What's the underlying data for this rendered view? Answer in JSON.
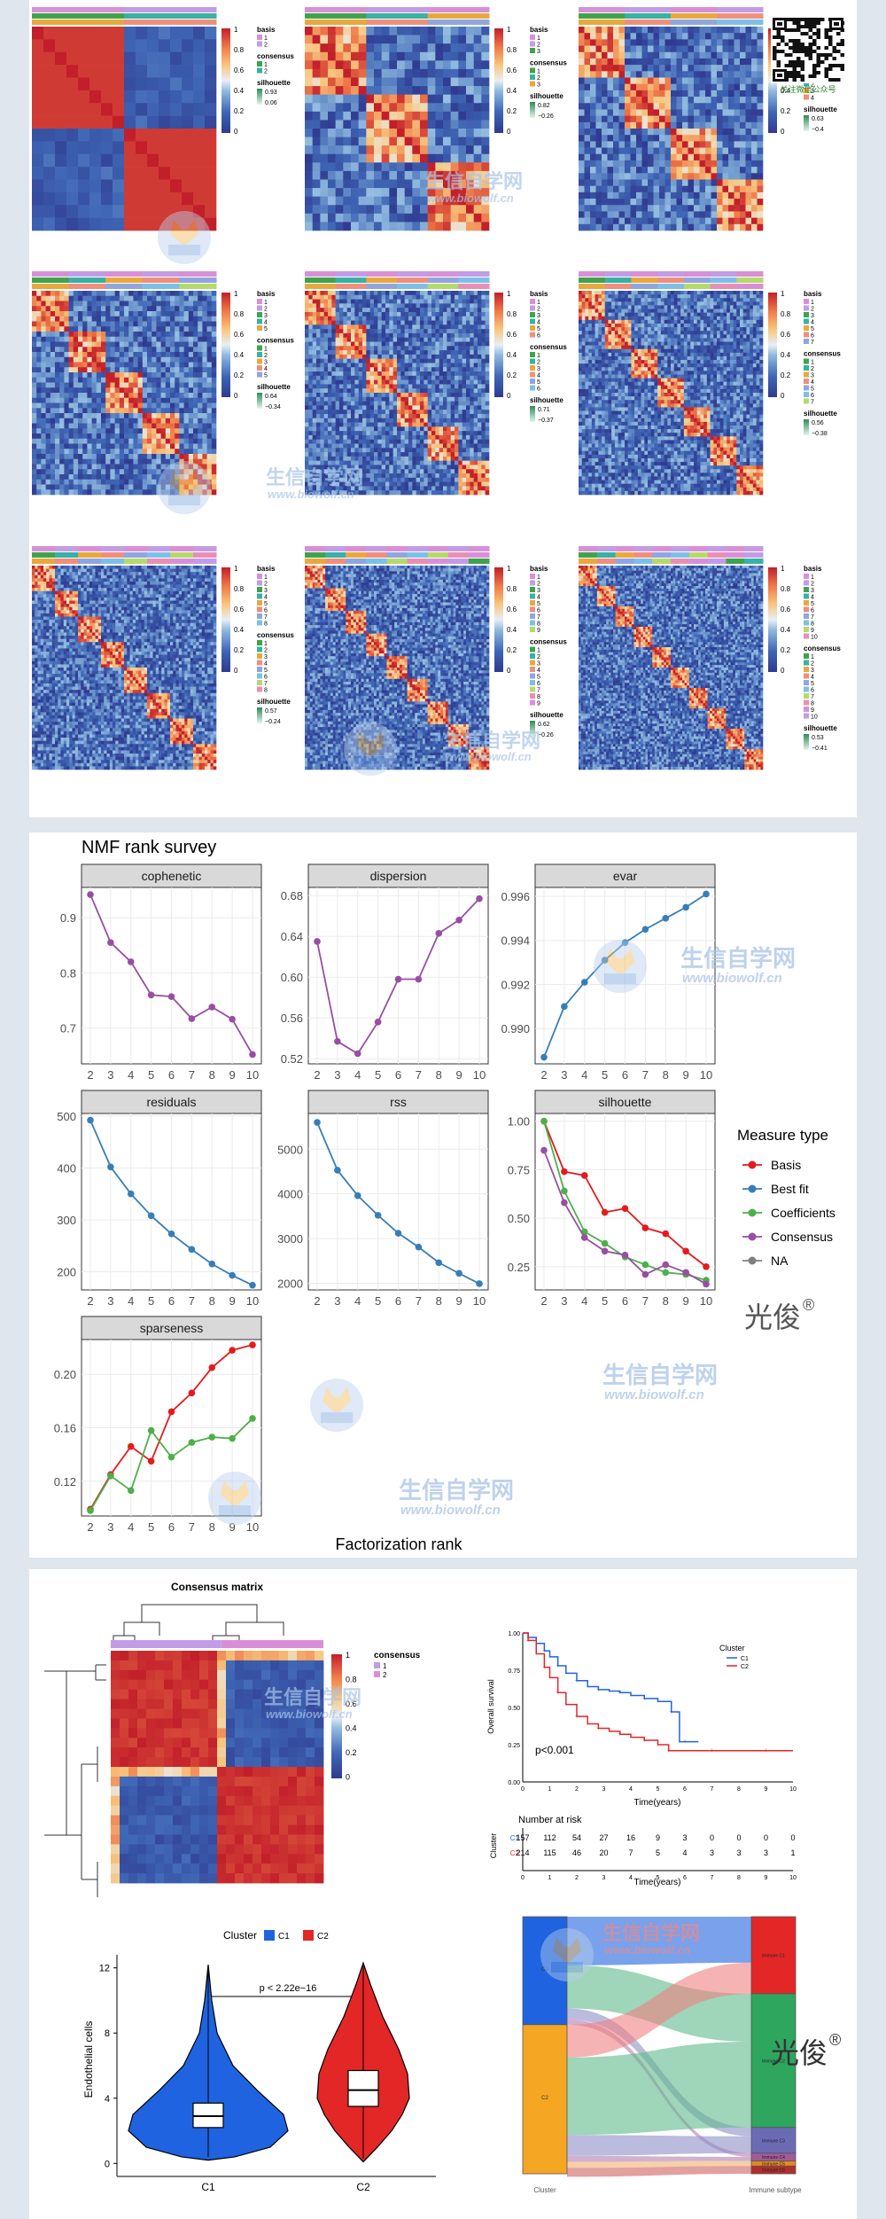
{
  "colors": {
    "page_bg": "#dfe6ee",
    "heat_scale": [
      "#2f3a8f",
      "#3f66b5",
      "#8fb9de",
      "#e8eef5",
      "#f7c67e",
      "#ef7a4a",
      "#c21f2a"
    ],
    "basis_pink": "#d98fd8",
    "basis_purple": "#c39be6",
    "cons_green": "#3fa34d",
    "cons_teal": "#38b2a4",
    "cons_orange": "#e9a83d",
    "cons_salmon": "#f08f7b",
    "measure": {
      "Basis": "#e41a1c",
      "Best fit": "#377eb8",
      "Coefficients": "#4daf4a",
      "Consensus": "#984ea3",
      "NA": "#7f7f7f"
    },
    "cluster_C1": "#1f63e0",
    "cluster_C2": "#e32626"
  },
  "icons": [
    "qr-code-icon",
    "fox-watermark-icon"
  ],
  "watermark": {
    "brand_cn": "生信自学网",
    "url": "www.biowolf.cn",
    "signature": "光俊",
    "reg": "®",
    "qr_caption": "关注微信公众号"
  },
  "consensus_maps": {
    "scale_ticks": [
      "1",
      "0.8",
      "0.6",
      "0.4",
      "0.2",
      "0"
    ],
    "basis_label": "basis",
    "consensus_label": "consensus",
    "silhouette_label": "silhouette",
    "maps": [
      {
        "k": 2,
        "silhouette_hi": "0.93",
        "silhouette_lo": "0.06"
      },
      {
        "k": 3,
        "silhouette_hi": "0.82",
        "silhouette_lo": "−0.26"
      },
      {
        "k": 4,
        "silhouette_hi": "0.63",
        "silhouette_lo": "−0.4"
      },
      {
        "k": 5,
        "silhouette_hi": "0.64",
        "silhouette_lo": "−0.34"
      },
      {
        "k": 6,
        "silhouette_hi": "0.71",
        "silhouette_lo": "−0.37"
      },
      {
        "k": 7,
        "silhouette_hi": "0.56",
        "silhouette_lo": "−0.38"
      },
      {
        "k": 8,
        "silhouette_hi": "0.57",
        "silhouette_lo": "−0.24"
      },
      {
        "k": 9,
        "silhouette_hi": "0.62",
        "silhouette_lo": "−0.26"
      },
      {
        "k": 10,
        "silhouette_hi": "0.53",
        "silhouette_lo": "−0.41"
      }
    ]
  },
  "chart_data": [
    {
      "type": "line",
      "title": "NMF rank survey",
      "xlabel": "Factorization rank",
      "x": [
        2,
        3,
        4,
        5,
        6,
        7,
        8,
        9,
        10
      ],
      "legend_title": "Measure type",
      "legend_items": [
        "Basis",
        "Best fit",
        "Coefficients",
        "Consensus",
        "NA"
      ],
      "legend_position": "right",
      "facets": [
        {
          "name": "cophenetic",
          "yticks": [
            "0.7",
            "0.8",
            "0.9"
          ],
          "ylim": [
            0.635,
            0.955
          ],
          "series": [
            {
              "name": "Consensus",
              "values": [
                0.942,
                0.855,
                0.82,
                0.76,
                0.757,
                0.717,
                0.738,
                0.716,
                0.652
              ]
            }
          ]
        },
        {
          "name": "dispersion",
          "yticks": [
            "0.52",
            "0.56",
            "0.60",
            "0.64",
            "0.68"
          ],
          "ylim": [
            0.515,
            0.688
          ],
          "series": [
            {
              "name": "Consensus",
              "values": [
                0.635,
                0.537,
                0.525,
                0.556,
                0.598,
                0.598,
                0.643,
                0.656,
                0.677
              ]
            }
          ]
        },
        {
          "name": "evar",
          "yticks": [
            "0.990",
            "0.992",
            "0.994",
            "0.996"
          ],
          "ylim": [
            0.9884,
            0.9964
          ],
          "series": [
            {
              "name": "Best fit",
              "values": [
                0.9887,
                0.991,
                0.9921,
                0.9931,
                0.9939,
                0.9945,
                0.995,
                0.9955,
                0.9961
              ]
            }
          ]
        },
        {
          "name": "residuals",
          "yticks": [
            "200",
            "300",
            "400",
            "500"
          ],
          "ylim": [
            165,
            505
          ],
          "series": [
            {
              "name": "Best fit",
              "values": [
                492,
                402,
                350,
                308,
                273,
                243,
                215,
                193,
                174
              ]
            }
          ]
        },
        {
          "name": "rss",
          "yticks": [
            "2000",
            "3000",
            "4000",
            "5000"
          ],
          "ylim": [
            1850,
            5800
          ],
          "series": [
            {
              "name": "Best fit",
              "values": [
                5600,
                4530,
                3960,
                3520,
                3120,
                2810,
                2460,
                2220,
                1990
              ]
            }
          ]
        },
        {
          "name": "silhouette",
          "yticks": [
            "0.25",
            "0.50",
            "0.75",
            "1.00"
          ],
          "ylim": [
            0.13,
            1.04
          ],
          "series": [
            {
              "name": "Basis",
              "values": [
                1.0,
                0.74,
                0.72,
                0.53,
                0.55,
                0.45,
                0.42,
                0.33,
                0.25
              ]
            },
            {
              "name": "Coefficients",
              "values": [
                1.0,
                0.64,
                0.43,
                0.37,
                0.3,
                0.26,
                0.22,
                0.21,
                0.18
              ]
            },
            {
              "name": "Consensus",
              "values": [
                0.85,
                0.58,
                0.4,
                0.33,
                0.31,
                0.21,
                0.26,
                0.22,
                0.16
              ]
            }
          ]
        },
        {
          "name": "sparseness",
          "yticks": [
            "0.12",
            "0.16",
            "0.20"
          ],
          "ylim": [
            0.094,
            0.226
          ],
          "series": [
            {
              "name": "Basis",
              "values": [
                0.099,
                0.125,
                0.146,
                0.135,
                0.172,
                0.186,
                0.205,
                0.218,
                0.222
              ]
            },
            {
              "name": "Coefficients",
              "values": [
                0.098,
                0.124,
                0.113,
                0.158,
                0.138,
                0.149,
                0.153,
                0.152,
                0.167
              ]
            }
          ]
        }
      ]
    },
    {
      "type": "heatmap",
      "title": "Consensus matrix",
      "legend_title": "consensus",
      "legend_items": [
        "1",
        "2"
      ],
      "scale_ticks": [
        "1",
        "0.8",
        "0.6",
        "0.4",
        "0.2",
        "0"
      ]
    },
    {
      "type": "line",
      "title": "",
      "ylabel": "Overall survival",
      "xlabel": "Time(years)",
      "xlim": [
        0,
        10
      ],
      "ylim": [
        0,
        1
      ],
      "xticks": [
        "0",
        "1",
        "2",
        "3",
        "4",
        "5",
        "6",
        "7",
        "8",
        "9",
        "10"
      ],
      "yticks": [
        "0.00",
        "0.25",
        "0.50",
        "0.75",
        "1.00"
      ],
      "legend_title": "Cluster",
      "legend_position": "top-right",
      "pvalue": "p<0.001",
      "series": [
        {
          "name": "C1",
          "x": [
            0,
            0.2,
            0.5,
            0.8,
            1.0,
            1.3,
            1.6,
            2.0,
            2.4,
            2.8,
            3.2,
            3.6,
            4.0,
            4.5,
            5.0,
            5.5,
            5.8,
            6.0,
            6.5
          ],
          "values": [
            1.0,
            0.97,
            0.93,
            0.88,
            0.84,
            0.78,
            0.73,
            0.68,
            0.64,
            0.62,
            0.61,
            0.6,
            0.58,
            0.56,
            0.54,
            0.47,
            0.27,
            0.27,
            0.27
          ]
        },
        {
          "name": "C2",
          "x": [
            0,
            0.2,
            0.5,
            0.8,
            1.0,
            1.3,
            1.6,
            2.0,
            2.4,
            2.8,
            3.2,
            3.6,
            4.0,
            4.5,
            5.0,
            5.4,
            6.0,
            7.0,
            8.0,
            9.0,
            10.0
          ],
          "values": [
            1.0,
            0.95,
            0.86,
            0.77,
            0.7,
            0.6,
            0.52,
            0.44,
            0.39,
            0.36,
            0.34,
            0.32,
            0.3,
            0.28,
            0.25,
            0.21,
            0.21,
            0.21,
            0.21,
            0.21,
            0.21
          ]
        }
      ],
      "risk_table": {
        "title": "Number at risk",
        "ylabel": "Cluster",
        "xlabel": "Time(years)",
        "rows": [
          {
            "name": "C1",
            "values": [
              "157",
              "112",
              "54",
              "27",
              "16",
              "9",
              "3",
              "0",
              "0",
              "0",
              "0"
            ]
          },
          {
            "name": "C2",
            "values": [
              "214",
              "115",
              "46",
              "20",
              "7",
              "5",
              "4",
              "3",
              "3",
              "3",
              "1"
            ]
          }
        ]
      }
    },
    {
      "type": "violin",
      "title": "",
      "ylabel": "Endothelial cells",
      "legend_title": "Cluster",
      "legend_position": "top",
      "categories": [
        "C1",
        "C2"
      ],
      "yticks": [
        "0",
        "4",
        "8",
        "12"
      ],
      "ylim": [
        -0.8,
        12.8
      ],
      "pvalue": "p < 2.22e−16",
      "medians": [
        2.9,
        4.5
      ],
      "quartiles": [
        [
          2.2,
          3.7
        ],
        [
          3.5,
          5.7
        ]
      ]
    },
    {
      "type": "sankey",
      "title": "",
      "axis_labels": [
        "Cluster",
        "Immune subtype"
      ],
      "left_nodes": [
        {
          "name": "C1",
          "share": 0.42
        },
        {
          "name": "C2",
          "share": 0.58
        }
      ],
      "right_nodes": [
        {
          "name": "Immune C1",
          "share": 0.3
        },
        {
          "name": "Immune C2",
          "share": 0.52
        },
        {
          "name": "Immune C3",
          "share": 0.1
        },
        {
          "name": "Immune C4",
          "share": 0.03
        },
        {
          "name": "Immune C5",
          "share": 0.02
        },
        {
          "name": "Immune C6",
          "share": 0.03
        }
      ]
    }
  ]
}
